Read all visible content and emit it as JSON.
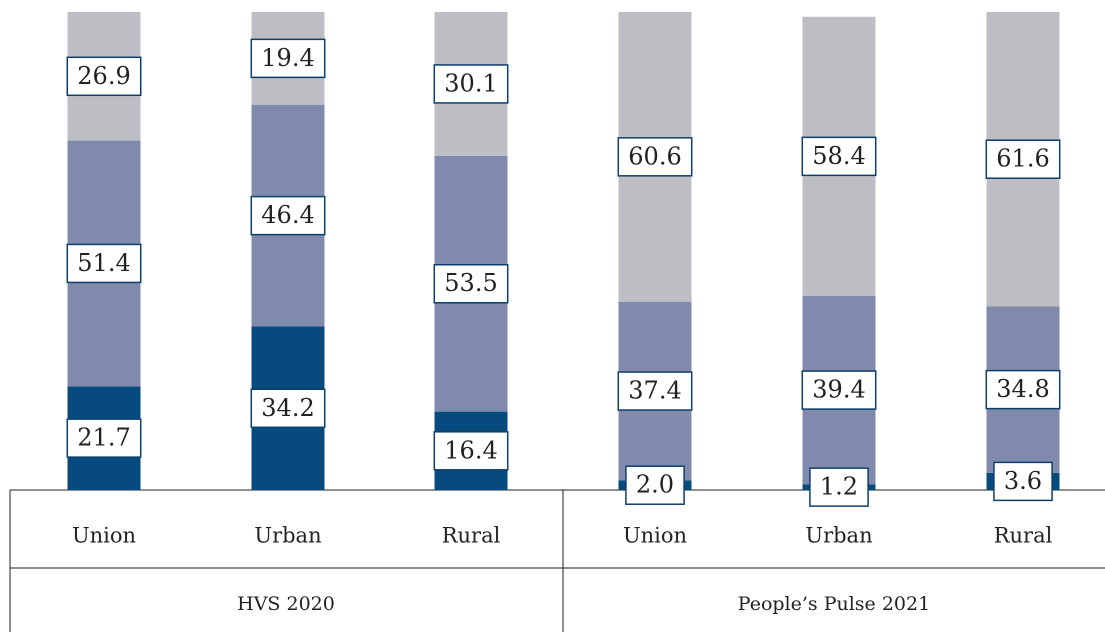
{
  "chart_data": {
    "type": "stacked_bar",
    "categories": [
      "Union",
      "Urban",
      "Rural",
      "Union",
      "Urban",
      "Rural"
    ],
    "groups": [
      "HVS 2020",
      "People’s Pulse 2021"
    ],
    "series": [
      {
        "color": "#074a7e",
        "values": [
          21.7,
          34.2,
          16.4,
          2.0,
          1.2,
          3.6
        ],
        "value_labels": [
          "21.7",
          "34.2",
          "16.4",
          "2.0",
          "1.2",
          "3.6"
        ]
      },
      {
        "color": "#7f8aad",
        "values": [
          51.4,
          46.4,
          53.5,
          37.4,
          39.4,
          34.8
        ],
        "value_labels": [
          "51.4",
          "46.4",
          "53.5",
          "37.4",
          "39.4",
          "34.8"
        ]
      },
      {
        "color": "#bdbec3",
        "values": [
          26.9,
          19.4,
          30.1,
          60.6,
          58.4,
          61.6
        ],
        "value_labels": [
          "26.9",
          "19.4",
          "30.1",
          "60.6",
          "58.4",
          "61.6"
        ]
      }
    ],
    "ylim": [
      0,
      100
    ]
  }
}
